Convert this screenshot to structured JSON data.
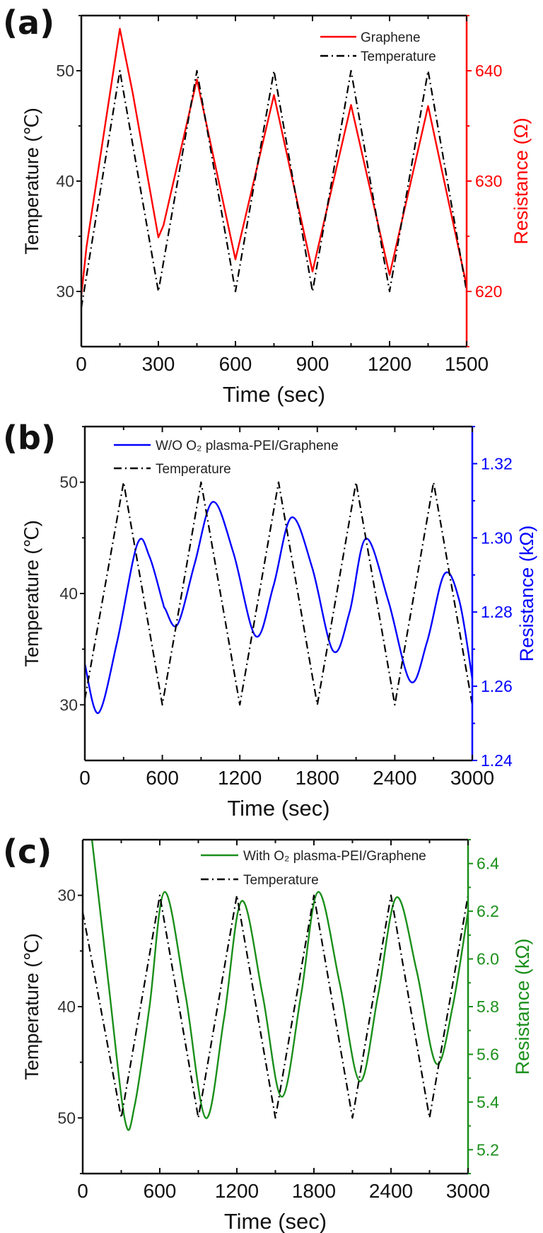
{
  "chart_data": [
    {
      "panel_label": "(a)",
      "type": "line",
      "xlabel": "Time (sec)",
      "ylabel": "Temperature (℃)",
      "y2label": "Resistance (Ω)",
      "xlim": [
        0,
        1500
      ],
      "xticks": [
        0,
        300,
        600,
        900,
        1200,
        1500
      ],
      "ylim": [
        25,
        55
      ],
      "yticks": [
        30,
        40,
        50
      ],
      "y2lim": [
        615,
        645
      ],
      "y2ticks": [
        620,
        630,
        640
      ],
      "y2tick_labels": [
        "620",
        "630",
        "640"
      ],
      "legend": "top-right",
      "accent_color": "#ff0000",
      "series": [
        {
          "name": "Graphene",
          "axis": "right",
          "color": "#ff0000",
          "style": "solid",
          "x": [
            0,
            20,
            150,
            200,
            300,
            320,
            450,
            600,
            750,
            900,
            1050,
            1200,
            1350,
            1500
          ],
          "y": [
            619.6,
            624,
            643.8,
            638,
            624.9,
            626,
            639.2,
            622.9,
            637.8,
            621.8,
            636.9,
            621.5,
            636.8,
            620.5
          ]
        },
        {
          "name": "Temperature",
          "axis": "left",
          "color": "#000000",
          "style": "dash-dot",
          "x": [
            0,
            150,
            300,
            450,
            600,
            750,
            900,
            1050,
            1200,
            1350,
            1500
          ],
          "y": [
            28.5,
            50,
            30,
            50,
            30,
            50,
            30,
            50,
            30,
            50,
            30
          ]
        }
      ]
    },
    {
      "panel_label": "(b)",
      "type": "line",
      "xlabel": "Time (sec)",
      "ylabel": "Temperature (℃)",
      "y2label": "Resistance (kΩ)",
      "xlim": [
        0,
        3000
      ],
      "xticks": [
        0,
        600,
        1200,
        1800,
        2400,
        3000
      ],
      "ylim": [
        25,
        55
      ],
      "yticks": [
        30,
        40,
        50
      ],
      "y2lim": [
        1.24,
        1.33
      ],
      "y2ticks": [
        1.24,
        1.26,
        1.28,
        1.3,
        1.32
      ],
      "y2tick_labels": [
        "1.24",
        "1.26",
        "1.28",
        "1.30",
        "1.32"
      ],
      "legend": "top-left",
      "accent_color": "#0000ff",
      "series": [
        {
          "name": "W/O O₂ plasma-PEI/Graphene",
          "axis": "right",
          "color": "#0000ff",
          "style": "smooth",
          "x": [
            0,
            105,
            250,
            406,
            500,
            600,
            623,
            717,
            850,
            991,
            1150,
            1323,
            1460,
            1600,
            1760,
            1923,
            2050,
            2177,
            2350,
            2521,
            2650,
            2785,
            2900,
            3000
          ],
          "y": [
            1.266,
            1.2528,
            1.272,
            1.2983,
            1.295,
            1.283,
            1.2808,
            1.2766,
            1.293,
            1.3097,
            1.296,
            1.2735,
            1.287,
            1.3055,
            1.292,
            1.2695,
            1.28,
            1.2998,
            1.283,
            1.2613,
            1.272,
            1.2903,
            1.283,
            1.262
          ]
        },
        {
          "name": "Temperature",
          "axis": "left",
          "color": "#000000",
          "style": "dash-dot",
          "x": [
            0,
            300,
            600,
            900,
            1200,
            1500,
            1800,
            2100,
            2400,
            2700,
            3000
          ],
          "y": [
            30.5,
            50,
            30,
            50,
            30,
            50,
            30,
            50,
            30,
            50,
            30
          ]
        }
      ]
    },
    {
      "panel_label": "(c)",
      "type": "line",
      "xlabel": "Time (sec)",
      "ylabel": "Temperature (℃)",
      "y2label": "Resistance (kΩ)",
      "xlim": [
        0,
        3000
      ],
      "xticks": [
        0,
        600,
        1200,
        1800,
        2400,
        3000
      ],
      "ylim": [
        25,
        55
      ],
      "y_inverted": true,
      "yticks": [
        30,
        40,
        50
      ],
      "y2lim": [
        5.1,
        6.5
      ],
      "y2ticks": [
        5.2,
        5.4,
        5.6,
        5.8,
        6.0,
        6.2,
        6.4
      ],
      "y2tick_labels": [
        "5.2",
        "5.4",
        "5.6",
        "5.8",
        "6.0",
        "6.2",
        "6.4"
      ],
      "legend": "top-right",
      "accent_color": "#1a8f1a",
      "series": [
        {
          "name": "With O₂ plasma-PEI/Graphene",
          "axis": "right",
          "color": "#1a8f1a",
          "style": "smooth",
          "x": [
            0,
            72,
            200,
            330,
            405,
            520,
            637,
            800,
            958,
            1100,
            1238,
            1400,
            1550,
            1700,
            1833,
            2000,
            2158,
            2300,
            2443,
            2600,
            2752,
            2880,
            3000
          ],
          "y": [
            6.75,
            6.5,
            5.9,
            5.321,
            5.387,
            5.8,
            6.281,
            5.85,
            5.333,
            5.75,
            6.243,
            5.85,
            5.422,
            5.85,
            6.281,
            5.9,
            5.487,
            5.85,
            6.258,
            5.95,
            5.561,
            5.8,
            6.2
          ]
        },
        {
          "name": "Temperature",
          "axis": "left",
          "color": "#000000",
          "style": "dash-dot",
          "x": [
            0,
            300,
            600,
            900,
            1200,
            1500,
            1800,
            2100,
            2400,
            2700,
            3000
          ],
          "y": [
            31.5,
            50,
            30,
            50,
            30,
            50,
            30,
            50,
            30,
            50,
            30
          ]
        }
      ]
    }
  ]
}
